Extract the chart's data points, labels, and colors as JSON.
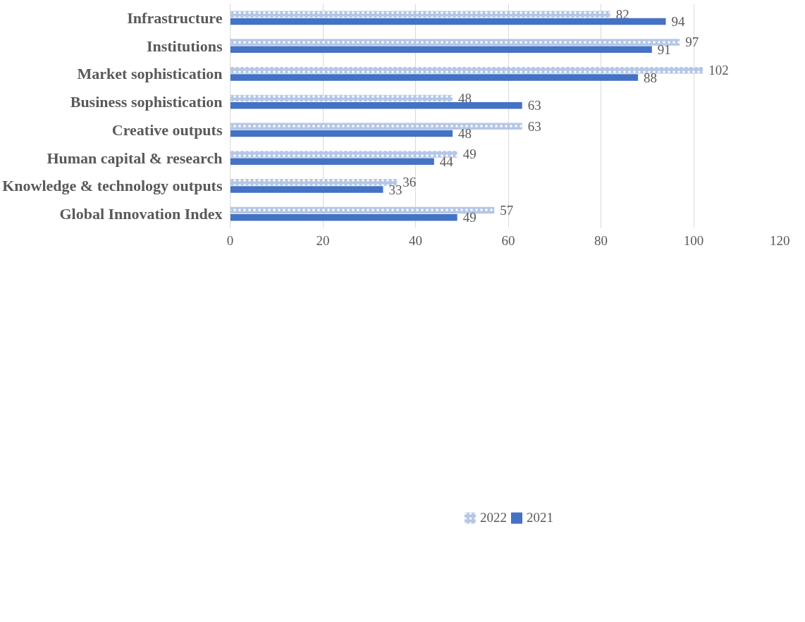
{
  "chart_data": {
    "type": "bar",
    "orientation": "horizontal",
    "categories": [
      "Infrastructure",
      "Institutions",
      "Market sophistication",
      "Business sophistication",
      "Creative outputs",
      "Human capital & research",
      "Knowledge & technology outputs",
      "Global Innovation Index"
    ],
    "series": [
      {
        "name": "2022",
        "color": "#b4c7e7",
        "values": [
          82,
          97,
          102,
          48,
          63,
          49,
          36,
          57
        ]
      },
      {
        "name": "2021",
        "color": "#4472c4",
        "values": [
          94,
          91,
          88,
          63,
          48,
          44,
          33,
          49
        ]
      }
    ],
    "xlim": [
      0,
      120
    ],
    "xticks": [
      0,
      20,
      40,
      60,
      80,
      100,
      120
    ],
    "grid": "x",
    "legend": "bottom",
    "data_labels": true
  }
}
